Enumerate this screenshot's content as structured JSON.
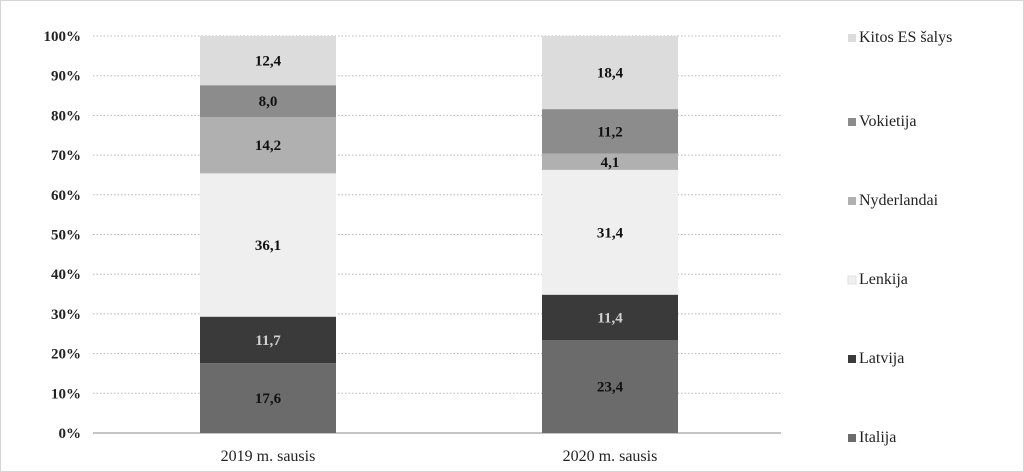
{
  "chart_data": {
    "type": "bar",
    "stacked": true,
    "percent": true,
    "title": "",
    "xlabel": "",
    "ylabel": "",
    "ylim": [
      0,
      100
    ],
    "y_ticks": [
      "0%",
      "10%",
      "20%",
      "30%",
      "40%",
      "50%",
      "60%",
      "70%",
      "80%",
      "90%",
      "100%"
    ],
    "grid": true,
    "legend_position": "right",
    "categories": [
      "2019 m. sausis",
      "2020 m. sausis"
    ],
    "series": [
      {
        "name": "Italija",
        "values": [
          17.6,
          23.4
        ],
        "labels": [
          "17,6",
          "23,4"
        ],
        "color": "#6b6b6b",
        "label_color": "#111111"
      },
      {
        "name": "Latvija",
        "values": [
          11.7,
          11.4
        ],
        "labels": [
          "11,7",
          "11,4"
        ],
        "color": "#3a3a3a",
        "label_color": "#d0d0d0"
      },
      {
        "name": "Lenkija",
        "values": [
          36.1,
          31.4
        ],
        "labels": [
          "36,1",
          "31,4"
        ],
        "color": "#efefef",
        "label_color": "#111111"
      },
      {
        "name": "Nyderlandai",
        "values": [
          14.2,
          4.1
        ],
        "labels": [
          "14,2",
          "4,1"
        ],
        "color": "#b0b0b0",
        "label_color": "#111111"
      },
      {
        "name": "Vokietija",
        "values": [
          8.0,
          11.2
        ],
        "labels": [
          "8,0",
          "11,2"
        ],
        "color": "#8c8c8c",
        "label_color": "#111111"
      },
      {
        "name": "Kitos ES šalys",
        "values": [
          12.4,
          18.4
        ],
        "labels": [
          "12,4",
          "18,4"
        ],
        "color": "#dcdcdc",
        "label_color": "#111111"
      }
    ],
    "legend_order": [
      "Kitos ES šalys",
      "Vokietija",
      "Nyderlandai",
      "Lenkija",
      "Latvija",
      "Italija"
    ]
  }
}
